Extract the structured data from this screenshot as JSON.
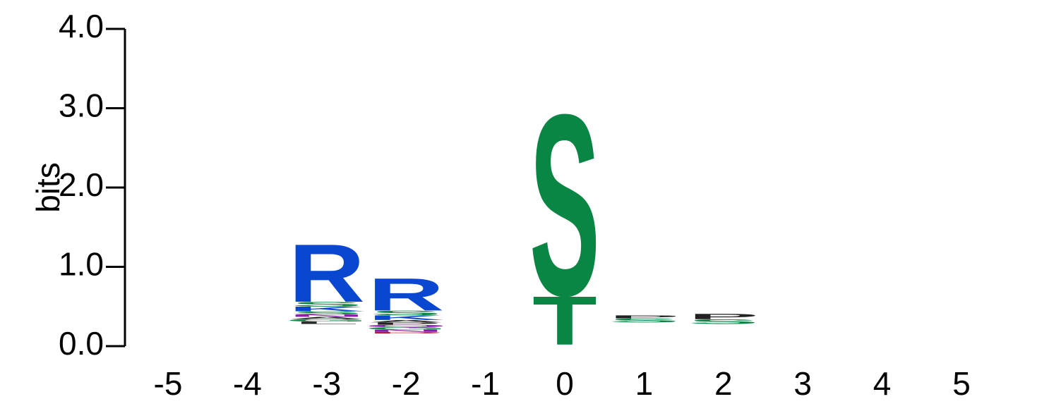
{
  "chart_data": {
    "type": "sequence-logo",
    "ylabel": "bits",
    "ylim": [
      0,
      4.0
    ],
    "y_ticks": [
      "0.0",
      "1.0",
      "2.0",
      "3.0",
      "4.0"
    ],
    "x_ticks": [
      "-5",
      "-4",
      "-3",
      "-2",
      "-1",
      "0",
      "1",
      "2",
      "3",
      "4",
      "5"
    ],
    "colors": {
      "R": "#0a47d0",
      "K": "#0a47d0",
      "H": "#0a47d0",
      "S": "#0a8644",
      "T": "#0a8644",
      "G": "#0a8644",
      "Y": "#0a8644",
      "C": "#0a8644",
      "N": "#8a1aa8",
      "Q": "#8a1aa8",
      "D": "#c01818",
      "E": "#c01818",
      "P": "#222222",
      "A": "#222222",
      "L": "#222222",
      "V": "#222222",
      "I": "#222222"
    },
    "positions": [
      {
        "pos": "-5",
        "base": 0,
        "letters": []
      },
      {
        "pos": "-4",
        "base": 0,
        "letters": []
      },
      {
        "pos": "-3",
        "base": 0.28,
        "letters": [
          {
            "aa": "L",
            "bits": 0.03
          },
          {
            "aa": "G",
            "bits": 0.03
          },
          {
            "aa": "A",
            "bits": 0.03
          },
          {
            "aa": "N",
            "bits": 0.03
          },
          {
            "aa": "S",
            "bits": 0.04
          },
          {
            "aa": "K",
            "bits": 0.06
          },
          {
            "aa": "S",
            "bits": 0.06
          },
          {
            "aa": "R",
            "bits": 0.75
          }
        ]
      },
      {
        "pos": "-2",
        "base": 0.16,
        "letters": [
          {
            "aa": "D",
            "bits": 0.02
          },
          {
            "aa": "N",
            "bits": 0.03
          },
          {
            "aa": "G",
            "bits": 0.03
          },
          {
            "aa": "Q",
            "bits": 0.03
          },
          {
            "aa": "P",
            "bits": 0.03
          },
          {
            "aa": "A",
            "bits": 0.03
          },
          {
            "aa": "K",
            "bits": 0.06
          },
          {
            "aa": "S",
            "bits": 0.06
          },
          {
            "aa": "R",
            "bits": 0.42
          }
        ]
      },
      {
        "pos": "-1",
        "base": 0,
        "letters": []
      },
      {
        "pos": "0",
        "base": 0.02,
        "letters": [
          {
            "aa": "T",
            "bits": 0.63
          },
          {
            "aa": "S",
            "bits": 2.35
          }
        ]
      },
      {
        "pos": "1",
        "base": 0.3,
        "letters": [
          {
            "aa": "S",
            "bits": 0.05
          },
          {
            "aa": "P",
            "bits": 0.04
          }
        ]
      },
      {
        "pos": "2",
        "base": 0.28,
        "letters": [
          {
            "aa": "S",
            "bits": 0.06
          },
          {
            "aa": "P",
            "bits": 0.07
          }
        ]
      },
      {
        "pos": "3",
        "base": 0,
        "letters": []
      },
      {
        "pos": "4",
        "base": 0,
        "letters": []
      },
      {
        "pos": "5",
        "base": 0,
        "letters": []
      }
    ]
  }
}
